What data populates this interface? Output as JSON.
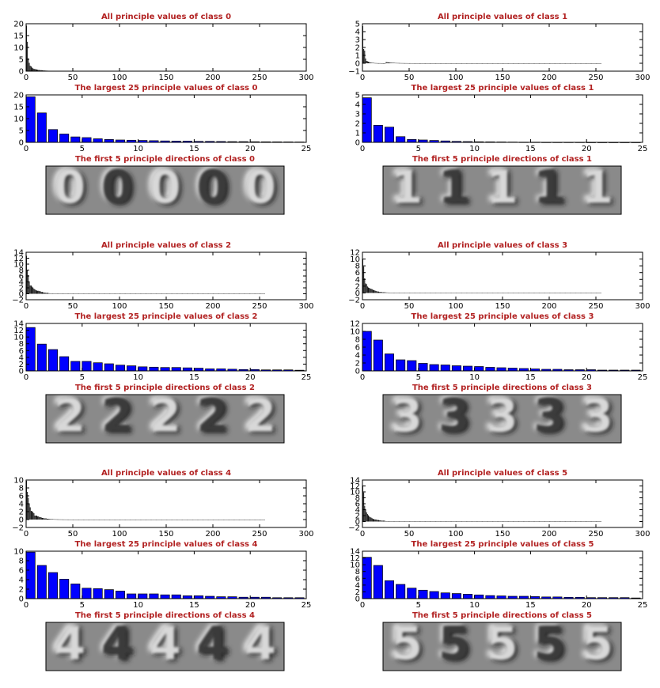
{
  "colors": {
    "title": "#b22222",
    "bar_blue": "#0000ff",
    "bar_black": "#000000",
    "axes": "#000000"
  },
  "chart_data": [
    {
      "type": "bar",
      "panel": "all",
      "title": "All principle values of class 0",
      "xlim": [
        0,
        300
      ],
      "ylim": [
        0,
        20
      ],
      "xticks": [
        "0",
        "50",
        "100",
        "150",
        "200",
        "250",
        "300"
      ],
      "yticks": [
        "0",
        "5",
        "10",
        "15",
        "20"
      ],
      "values": [
        19.2,
        12.4,
        5.4,
        3.5,
        2.3,
        2.0,
        1.5,
        1.2,
        1.0,
        0.9,
        0.8,
        0.7,
        0.6,
        0.5,
        0.5,
        0.4,
        0.4,
        0.35,
        0.3,
        0.3,
        0.25,
        0.22,
        0.2,
        0.18,
        0.15
      ],
      "n_total": 226
    },
    {
      "type": "bar",
      "panel": "top25",
      "title": "The largest 25 principle values of class 0",
      "xlim": [
        0,
        25
      ],
      "ylim": [
        0,
        20
      ],
      "xticks": [
        "0",
        "5",
        "10",
        "15",
        "20",
        "25"
      ],
      "yticks": [
        "0",
        "5",
        "10",
        "15",
        "20"
      ],
      "values": [
        19.2,
        12.4,
        5.4,
        3.5,
        2.3,
        2.0,
        1.5,
        1.2,
        1.0,
        0.9,
        0.8,
        0.7,
        0.6,
        0.5,
        0.5,
        0.4,
        0.4,
        0.35,
        0.3,
        0.3,
        0.25,
        0.22,
        0.2,
        0.18,
        0.15
      ]
    },
    {
      "type": "heatmap",
      "panel": "dirs",
      "title": "The first 5 principle directions of class 0",
      "digit": "0"
    },
    {
      "type": "bar",
      "panel": "all",
      "title": "All principle values of class 1",
      "xlim": [
        0,
        300
      ],
      "ylim": [
        -1,
        5
      ],
      "xticks": [
        "0",
        "50",
        "100",
        "150",
        "200",
        "250",
        "300"
      ],
      "yticks": [
        "−1",
        "0",
        "1",
        "2",
        "3",
        "4",
        "5"
      ],
      "values": [
        4.7,
        1.8,
        1.6,
        0.6,
        0.3,
        0.25,
        0.2,
        0.15,
        0.1,
        0.08,
        0.06,
        0.05,
        0.04,
        0.03,
        0.02,
        0.02,
        0.01,
        0.01,
        0.01,
        0.01,
        0.0,
        0.0,
        0.0,
        0.0,
        0.0
      ],
      "n_total": 256
    },
    {
      "type": "bar",
      "panel": "top25",
      "title": "The largest 25 principle values of class 1",
      "xlim": [
        0,
        25
      ],
      "ylim": [
        0,
        5
      ],
      "xticks": [
        "0",
        "5",
        "10",
        "15",
        "20",
        "25"
      ],
      "yticks": [
        "0",
        "1",
        "2",
        "3",
        "4",
        "5"
      ],
      "values": [
        4.7,
        1.8,
        1.6,
        0.6,
        0.3,
        0.25,
        0.2,
        0.15,
        0.1,
        0.08,
        0.06,
        0.05,
        0.04,
        0.03,
        0.02,
        0.02,
        0.01,
        0.01,
        0.01,
        0.01,
        0.0,
        0.0,
        0.0,
        0.0,
        0.0
      ]
    },
    {
      "type": "heatmap",
      "panel": "dirs",
      "title": "The first 5 principle directions of class 1",
      "digit": "1"
    },
    {
      "type": "bar",
      "panel": "all",
      "title": "All principle values of class 2",
      "xlim": [
        0,
        300
      ],
      "ylim": [
        -2,
        14
      ],
      "xticks": [
        "0",
        "50",
        "100",
        "150",
        "200",
        "250",
        "300"
      ],
      "yticks": [
        "−2",
        "0",
        "2",
        "4",
        "6",
        "8",
        "10",
        "12",
        "14"
      ],
      "values": [
        12.8,
        7.9,
        6.3,
        4.2,
        2.8,
        2.8,
        2.4,
        2.1,
        1.7,
        1.5,
        1.2,
        1.1,
        1.0,
        1.0,
        0.9,
        0.8,
        0.6,
        0.6,
        0.5,
        0.4,
        0.4,
        0.3,
        0.3,
        0.3,
        0.2
      ],
      "n_total": 256
    },
    {
      "type": "bar",
      "panel": "top25",
      "title": "The largest 25 principle values of class 2",
      "xlim": [
        0,
        25
      ],
      "ylim": [
        0,
        14
      ],
      "xticks": [
        "0",
        "5",
        "10",
        "15",
        "20",
        "25"
      ],
      "yticks": [
        "0",
        "2",
        "4",
        "6",
        "8",
        "10",
        "12",
        "14"
      ],
      "values": [
        12.8,
        7.9,
        6.3,
        4.2,
        2.8,
        2.8,
        2.4,
        2.1,
        1.7,
        1.5,
        1.2,
        1.1,
        1.0,
        1.0,
        0.9,
        0.8,
        0.6,
        0.6,
        0.5,
        0.4,
        0.4,
        0.3,
        0.3,
        0.3,
        0.2
      ]
    },
    {
      "type": "heatmap",
      "panel": "dirs",
      "title": "The first 5 principle directions of class 2",
      "digit": "2"
    },
    {
      "type": "bar",
      "panel": "all",
      "title": "All principle values of class 3",
      "xlim": [
        0,
        300
      ],
      "ylim": [
        -2,
        12
      ],
      "xticks": [
        "0",
        "50",
        "100",
        "150",
        "200",
        "250",
        "300"
      ],
      "yticks": [
        "−2",
        "0",
        "2",
        "4",
        "6",
        "8",
        "10",
        "12"
      ],
      "values": [
        10.0,
        7.8,
        4.3,
        2.8,
        2.6,
        1.9,
        1.6,
        1.5,
        1.3,
        1.2,
        1.1,
        0.9,
        0.8,
        0.7,
        0.6,
        0.5,
        0.4,
        0.4,
        0.3,
        0.3,
        0.3,
        0.2,
        0.2,
        0.2,
        0.2
      ],
      "n_total": 256
    },
    {
      "type": "bar",
      "panel": "top25",
      "title": "The largest 25 principle values of class 3",
      "xlim": [
        0,
        25
      ],
      "ylim": [
        0,
        12
      ],
      "xticks": [
        "0",
        "5",
        "10",
        "15",
        "20",
        "25"
      ],
      "yticks": [
        "0",
        "2",
        "4",
        "6",
        "8",
        "10",
        "12"
      ],
      "values": [
        10.0,
        7.8,
        4.3,
        2.8,
        2.6,
        1.9,
        1.6,
        1.5,
        1.3,
        1.2,
        1.1,
        0.9,
        0.8,
        0.7,
        0.6,
        0.5,
        0.4,
        0.4,
        0.3,
        0.3,
        0.3,
        0.2,
        0.2,
        0.2,
        0.2
      ]
    },
    {
      "type": "heatmap",
      "panel": "dirs",
      "title": "The first 5 principle directions of class 3",
      "digit": "3"
    },
    {
      "type": "bar",
      "panel": "all",
      "title": "All principle values of class 4",
      "xlim": [
        0,
        300
      ],
      "ylim": [
        -2,
        10
      ],
      "xticks": [
        "0",
        "50",
        "100",
        "150",
        "200",
        "250",
        "300"
      ],
      "yticks": [
        "−2",
        "0",
        "2",
        "4",
        "6",
        "8",
        "10"
      ],
      "values": [
        9.8,
        7.0,
        5.5,
        4.1,
        3.1,
        2.2,
        2.1,
        1.9,
        1.6,
        1.0,
        1.0,
        1.0,
        0.8,
        0.8,
        0.6,
        0.6,
        0.5,
        0.4,
        0.4,
        0.3,
        0.3,
        0.3,
        0.2,
        0.2,
        0.2
      ],
      "n_total": 256
    },
    {
      "type": "bar",
      "panel": "top25",
      "title": "The largest 25 principle values of class 4",
      "xlim": [
        0,
        25
      ],
      "ylim": [
        0,
        10
      ],
      "xticks": [
        "0",
        "5",
        "10",
        "15",
        "20",
        "25"
      ],
      "yticks": [
        "0",
        "2",
        "4",
        "6",
        "8",
        "10"
      ],
      "values": [
        9.8,
        7.0,
        5.5,
        4.1,
        3.1,
        2.2,
        2.1,
        1.9,
        1.6,
        1.0,
        1.0,
        1.0,
        0.8,
        0.8,
        0.6,
        0.6,
        0.5,
        0.4,
        0.4,
        0.3,
        0.3,
        0.3,
        0.2,
        0.2,
        0.2
      ]
    },
    {
      "type": "heatmap",
      "panel": "dirs",
      "title": "The first 5 principle directions of class 4",
      "digit": "4"
    },
    {
      "type": "bar",
      "panel": "all",
      "title": "All principle values of class 5",
      "xlim": [
        0,
        300
      ],
      "ylim": [
        -2,
        14
      ],
      "xticks": [
        "0",
        "50",
        "100",
        "150",
        "200",
        "250",
        "300"
      ],
      "yticks": [
        "−2",
        "0",
        "2",
        "4",
        "6",
        "8",
        "10",
        "12",
        "14"
      ],
      "values": [
        12.2,
        9.8,
        5.3,
        4.2,
        3.1,
        2.5,
        2.1,
        1.7,
        1.5,
        1.3,
        1.1,
        0.9,
        0.8,
        0.7,
        0.7,
        0.6,
        0.5,
        0.5,
        0.4,
        0.4,
        0.3,
        0.3,
        0.3,
        0.3,
        0.2
      ],
      "n_total": 256
    },
    {
      "type": "bar",
      "panel": "top25",
      "title": "The largest 25 principle values of class 5",
      "xlim": [
        0,
        25
      ],
      "ylim": [
        0,
        14
      ],
      "xticks": [
        "0",
        "5",
        "10",
        "15",
        "20",
        "25"
      ],
      "yticks": [
        "0",
        "2",
        "4",
        "6",
        "8",
        "10",
        "12",
        "14"
      ],
      "values": [
        12.2,
        9.8,
        5.3,
        4.2,
        3.1,
        2.5,
        2.1,
        1.7,
        1.5,
        1.3,
        1.1,
        0.9,
        0.8,
        0.7,
        0.7,
        0.6,
        0.5,
        0.5,
        0.4,
        0.4,
        0.3,
        0.3,
        0.3,
        0.3,
        0.2
      ]
    },
    {
      "type": "heatmap",
      "panel": "dirs",
      "title": "The first 5 principle directions of class 5",
      "digit": "5"
    }
  ]
}
